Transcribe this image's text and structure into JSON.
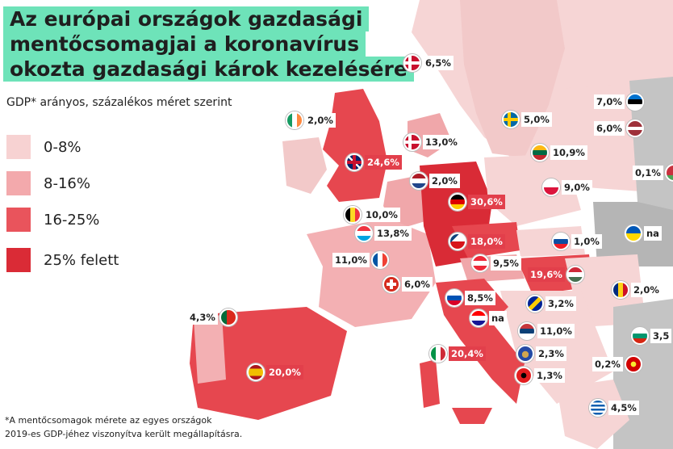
{
  "title_lines": [
    "Az európai országok gazdasági",
    "mentőcsomagjai a koronavírus",
    "okozta gazdasági károk kezelésére"
  ],
  "subtitle": "GDP* arányos, százalékos méret szerint",
  "legend": [
    {
      "label": "0-8%",
      "color": "#f7d2d2"
    },
    {
      "label": "8-16%",
      "color": "#f3a9ac"
    },
    {
      "label": "16-25%",
      "color": "#e9545c"
    },
    {
      "label": "25% felett",
      "color": "#da2b36"
    }
  ],
  "footnote": [
    "*A mentőcsomagok mérete az egyes országok",
    "2019-es GDP-jéhez viszonyítva került megállapításra."
  ],
  "countries": [
    {
      "name": "Dánia",
      "value": "6,5%",
      "flag": "denmark",
      "side": "right",
      "highlight": false
    },
    {
      "name": "Észtország",
      "value": "7,0%",
      "flag": "estonia",
      "side": "left",
      "highlight": false
    },
    {
      "name": "Írország",
      "value": "2,0%",
      "flag": "ireland",
      "side": "right",
      "highlight": false
    },
    {
      "name": "Svédország",
      "value": "5,0%",
      "flag": "sweden",
      "side": "right",
      "highlight": false
    },
    {
      "name": "Lettország",
      "value": "6,0%",
      "flag": "latvia",
      "side": "left",
      "highlight": false
    },
    {
      "name": "Dánia (feröeri)",
      "value": "13,0%",
      "flag": "denmark",
      "side": "right",
      "highlight": false
    },
    {
      "name": "Litvánia",
      "value": "10,9%",
      "flag": "lithuania",
      "side": "right",
      "highlight": false
    },
    {
      "name": "Egyesült Királyság",
      "value": "24,6%",
      "flag": "uk",
      "side": "right",
      "highlight": true
    },
    {
      "name": "Fehéroroszország",
      "value": "0,1%",
      "flag": "belarus",
      "side": "left",
      "highlight": false
    },
    {
      "name": "Hollandia",
      "value": "2,0%",
      "flag": "netherlands",
      "side": "right",
      "highlight": false
    },
    {
      "name": "Lengyelország",
      "value": "9,0%",
      "flag": "poland",
      "side": "right",
      "highlight": false
    },
    {
      "name": "Németország",
      "value": "30,6%",
      "flag": "germany",
      "side": "right",
      "highlight": true
    },
    {
      "name": "Belgium",
      "value": "10,0%",
      "flag": "belgium",
      "side": "right",
      "highlight": false
    },
    {
      "name": "Ukrajna",
      "value": "na",
      "flag": "ukraine",
      "side": "right",
      "highlight": false
    },
    {
      "name": "Luxemburg",
      "value": "13,8%",
      "flag": "luxembourg",
      "side": "right",
      "highlight": false
    },
    {
      "name": "Csehország",
      "value": "18,0%",
      "flag": "czechia",
      "side": "right",
      "highlight": true
    },
    {
      "name": "Szlovákia",
      "value": "1,0%",
      "flag": "slovakia",
      "side": "right",
      "highlight": false
    },
    {
      "name": "Franciaország",
      "value": "11,0%",
      "flag": "france",
      "side": "left",
      "highlight": false
    },
    {
      "name": "Ausztria",
      "value": "9,5%",
      "flag": "austria",
      "side": "right",
      "highlight": false
    },
    {
      "name": "Magyarország",
      "value": "19,6%",
      "flag": "hungary",
      "side": "left",
      "highlight": true
    },
    {
      "name": "Svájc",
      "value": "6,0%",
      "flag": "switzerland",
      "side": "right",
      "highlight": false
    },
    {
      "name": "Románia",
      "value": "2,0%",
      "flag": "romania",
      "side": "right",
      "highlight": false
    },
    {
      "name": "Szlovénia",
      "value": "8,5%",
      "flag": "slovenia",
      "side": "right",
      "highlight": false
    },
    {
      "name": "Bosznia-Hercegovina",
      "value": "3,2%",
      "flag": "bosnia",
      "side": "right",
      "highlight": false
    },
    {
      "name": "Portugália",
      "value": "4,3%",
      "flag": "portugal",
      "side": "left",
      "highlight": false
    },
    {
      "name": "Horvátország",
      "value": "na",
      "flag": "croatia",
      "side": "right",
      "highlight": false
    },
    {
      "name": "Szerbia",
      "value": "11,0%",
      "flag": "serbia",
      "side": "right",
      "highlight": false
    },
    {
      "name": "Bulgária",
      "value": "3,5",
      "flag": "bulgaria",
      "side": "right",
      "highlight": false
    },
    {
      "name": "Olaszország",
      "value": "20,4%",
      "flag": "italy",
      "side": "right",
      "highlight": true
    },
    {
      "name": "Koszovó",
      "value": "2,3%",
      "flag": "kosovo",
      "side": "right",
      "highlight": false
    },
    {
      "name": "Spanyolország",
      "value": "20,0%",
      "flag": "spain",
      "side": "right",
      "highlight": true
    },
    {
      "name": "Észak-Macedónia",
      "value": "0,2%",
      "flag": "macedonia",
      "side": "left",
      "highlight": false
    },
    {
      "name": "Albánia",
      "value": "1,3%",
      "flag": "albania",
      "side": "right",
      "highlight": false
    },
    {
      "name": "Görögország",
      "value": "4,5%",
      "flag": "greece",
      "side": "right",
      "highlight": false
    }
  ]
}
